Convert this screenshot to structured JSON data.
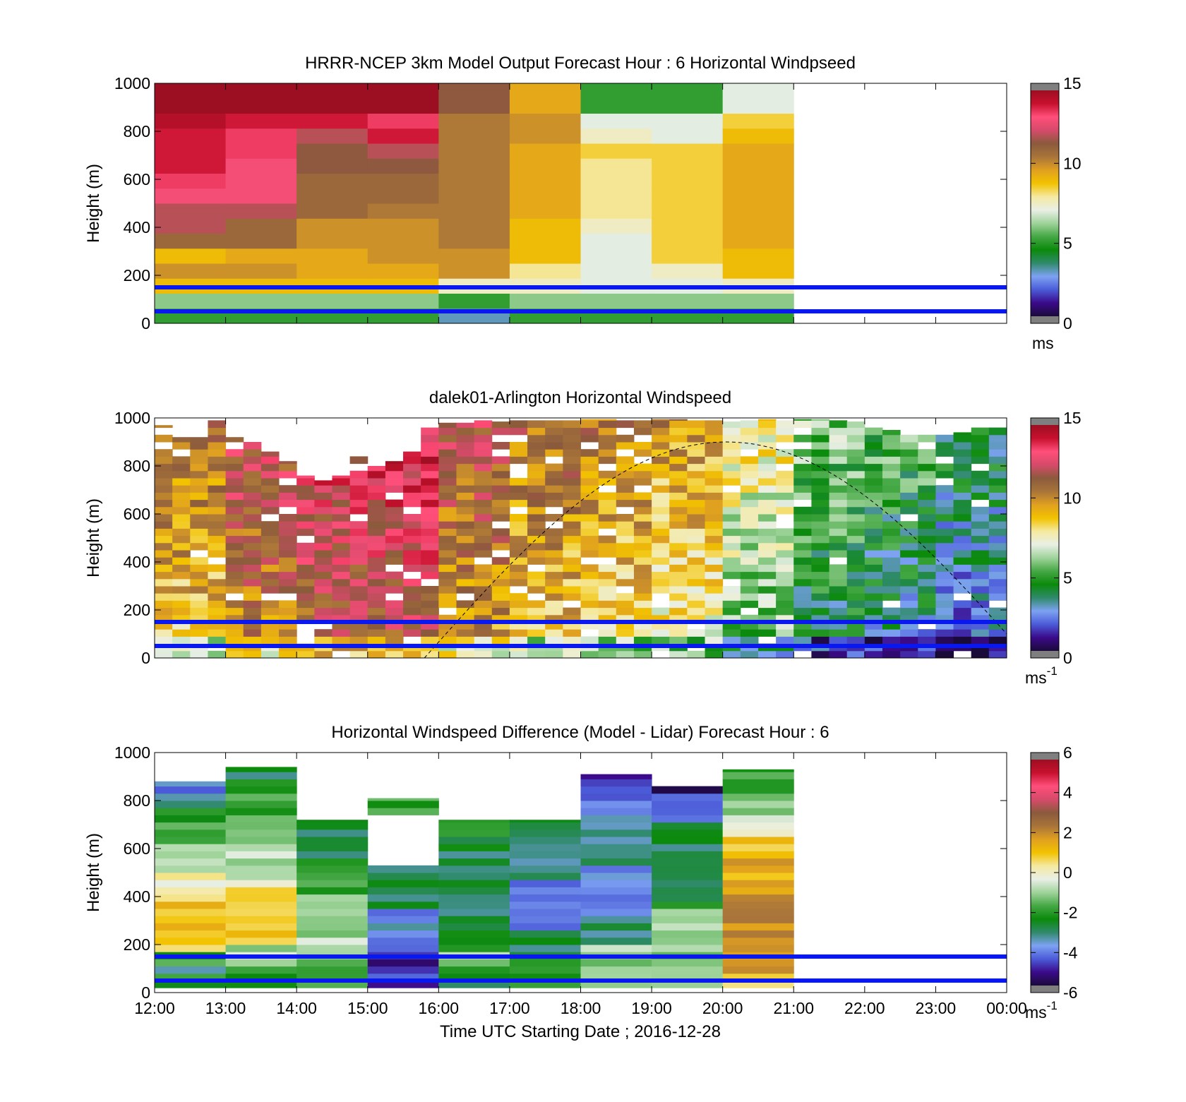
{
  "time_labels": [
    "12:00",
    "13:00",
    "14:00",
    "15:00",
    "16:00",
    "17:00",
    "18:00",
    "19:00",
    "20:00",
    "21:00",
    "22:00",
    "23:00",
    "00:00"
  ],
  "xlabel": "Time UTC  Starting Date ; 2016-12-28",
  "ylabel": "Height (m)",
  "y_ticks": [
    "0",
    "200",
    "400",
    "600",
    "800",
    "1000"
  ],
  "reference_heights_m": [
    50,
    150
  ],
  "colorbar_colors": [
    "#1a0a3a",
    "#3b0a8a",
    "#4b5bd8",
    "#7da2f2",
    "#2f8a6a",
    "#0b8a0b",
    "#45a845",
    "#9fd39a",
    "#e9efe6",
    "#f5e9a0",
    "#f2c200",
    "#e0a020",
    "#a8743a",
    "#8b5a3c",
    "#d64a6a",
    "#ff4f7a",
    "#c8102e",
    "#9c0f22"
  ],
  "chart_data": [
    {
      "type": "heatmap",
      "title": "HRRR-NCEP 3km Model Output   Forecast Hour : 6 Horizontal Windpseed",
      "xlabel": "",
      "ylabel": "Height (m)",
      "xlim": [
        "12:00",
        "00:00"
      ],
      "ylim": [
        0,
        1000
      ],
      "colorbar": {
        "min": 0,
        "max": 15,
        "ticks": [
          "0",
          "5",
          "10",
          "15"
        ],
        "unit_label": "ms"
      },
      "hours": [
        "12:00",
        "13:00",
        "14:00",
        "15:00",
        "16:00",
        "17:00",
        "18:00",
        "19:00",
        "20:00"
      ],
      "profiles": [
        [
          5,
          6,
          9,
          10,
          9,
          11,
          12,
          12,
          13,
          13.5,
          14,
          14,
          14,
          14.5,
          15.5,
          15.5
        ],
        [
          5,
          6,
          9,
          10,
          9.5,
          11,
          11,
          12,
          13,
          13,
          13,
          13.5,
          13.5,
          14,
          15.5,
          15.5
        ],
        [
          5,
          6,
          9,
          9.5,
          9.5,
          10,
          10,
          11,
          11,
          11,
          11.5,
          11.5,
          12,
          14,
          15,
          15
        ],
        [
          5,
          6,
          9,
          9.5,
          10,
          10,
          10,
          10.5,
          11,
          11,
          11.5,
          12,
          14,
          13.5,
          15,
          15
        ],
        [
          3,
          5,
          7.5,
          10,
          10,
          10.5,
          10.5,
          10.5,
          10.5,
          10.5,
          10.5,
          10.5,
          10.5,
          10.5,
          11.5,
          11.5
        ],
        [
          5,
          6,
          7.5,
          8,
          9,
          9,
          9,
          9.5,
          9.5,
          9.5,
          9.5,
          9.5,
          10,
          10,
          9.5,
          9.5
        ],
        [
          5,
          6,
          7,
          7,
          7,
          7,
          7.5,
          8,
          8,
          8,
          8,
          8.5,
          7.5,
          7,
          5,
          5
        ],
        [
          5,
          6,
          7,
          7.5,
          8.5,
          8.5,
          8.5,
          8.5,
          8.5,
          8.5,
          8.5,
          8.5,
          7,
          7,
          5,
          5
        ],
        [
          5,
          6,
          7.5,
          9,
          9,
          9.5,
          9.5,
          9.5,
          9.5,
          9.5,
          9.5,
          9.5,
          9,
          8.5,
          7,
          7
        ]
      ]
    },
    {
      "type": "heatmap",
      "title": "dalek01-Arlington  Horizontal Windspeed",
      "xlabel": "",
      "ylabel": "Height (m)",
      "xlim": [
        "12:00",
        "00:00"
      ],
      "ylim": [
        0,
        1000
      ],
      "colorbar": {
        "min": 0,
        "max": 15,
        "ticks": [
          "0",
          "5",
          "10",
          "15"
        ],
        "unit_label": "ms-1"
      },
      "columns_per_hour": 4,
      "hour_means": [
        11,
        12.5,
        13.5,
        14,
        12,
        11,
        10.5,
        10,
        8,
        6,
        5.5,
        4.5
      ],
      "max_heights_m": [
        970,
        920,
        920,
        990,
        920,
        900,
        860,
        820,
        760,
        740,
        760,
        860,
        800,
        820,
        860,
        960,
        980,
        980,
        990,
        985,
        990,
        990,
        990,
        990,
        995,
        995,
        995,
        990,
        995,
        995,
        990,
        990,
        985,
        990,
        995,
        990,
        995,
        995,
        990,
        985,
        960,
        950,
        930,
        930,
        930,
        940,
        960,
        960
      ]
    },
    {
      "type": "heatmap",
      "title": "Horizontal Windspeed Difference (Model - Lidar) Forecast Hour : 6",
      "xlabel": "Time UTC  Starting Date ; 2016-12-28",
      "ylabel": "Height (m)",
      "xlim": [
        "12:00",
        "00:00"
      ],
      "ylim": [
        0,
        1000
      ],
      "colorbar": {
        "min": -6,
        "max": 6,
        "ticks": [
          "-6",
          "-4",
          "-2",
          "0",
          "2",
          "4",
          "6"
        ],
        "unit_label": "ms-1"
      },
      "hours": [
        "12:00",
        "13:00",
        "14:00",
        "15:00",
        "16:00",
        "17:00",
        "18:00",
        "19:00",
        "20:00"
      ],
      "max_heights_m": [
        880,
        940,
        720,
        810,
        720,
        720,
        910,
        860,
        930
      ],
      "profiles": [
        [
          -2,
          -3,
          -2,
          1,
          1,
          1,
          1,
          0.5,
          0,
          -0.5,
          -1,
          -1.5,
          -2,
          -2.5,
          -3,
          -4
        ],
        [
          -2,
          -1.5,
          -1,
          1,
          1,
          1,
          0.5,
          0,
          -0.5,
          -1,
          -1,
          -1.5,
          -2,
          -2,
          -2.5,
          -3
        ],
        [
          -2,
          -1.5,
          -0.5,
          -0.5,
          -1,
          -1,
          -1.5,
          -2,
          -2,
          -2.5,
          -3,
          -3,
          -3
        ],
        [
          -5,
          -4.5,
          -4,
          -3,
          -3,
          -2.5,
          -2
        ],
        [
          -3,
          -2,
          -1,
          -2,
          -2.5,
          -3,
          -3,
          -3,
          -3,
          -3,
          -3,
          -2.5,
          -2.5,
          -2
        ],
        [
          -2,
          -2,
          -2.5,
          -3,
          -3,
          -4,
          -4,
          -4,
          -4,
          -3.5,
          -3,
          -3,
          -3,
          -3
        ],
        [
          -1,
          -1,
          -1,
          -3,
          -3,
          -4,
          -4,
          -4,
          -4,
          -3.5,
          -3.5,
          -3.5,
          -4,
          -4.5,
          -5,
          -5
        ],
        [
          -1,
          -1,
          -1,
          -1,
          -1,
          -1.5,
          -2,
          -2.5,
          -3,
          -3,
          -3,
          -3,
          -3,
          -4,
          -5,
          -5.5
        ],
        [
          1,
          2,
          2,
          2,
          2,
          2,
          2,
          2,
          1.5,
          1.5,
          1,
          0,
          -1,
          -1.5,
          -2,
          -2
        ]
      ]
    }
  ]
}
